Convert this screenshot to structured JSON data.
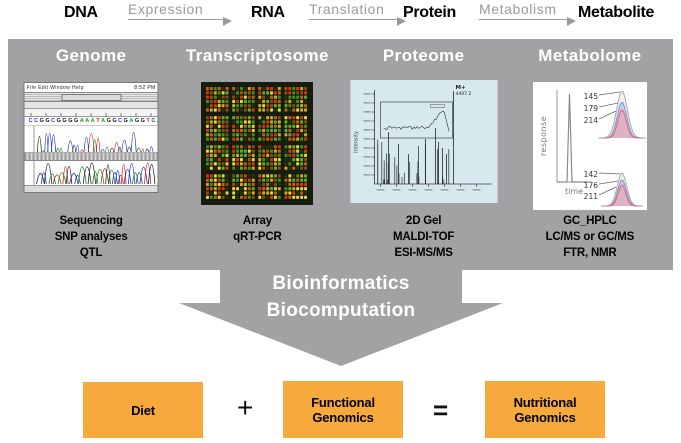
{
  "flow": {
    "dna": "DNA",
    "expression": "Expression",
    "rna": "RNA",
    "translation": "Translation",
    "protein": "Protein",
    "metabolism": "Metabolism",
    "metabolite": "Metabolite"
  },
  "panels": [
    {
      "title": "Genome",
      "methods": [
        "Sequencing",
        "SNP analyses",
        "QTL"
      ]
    },
    {
      "title": "Transcriptosome",
      "methods": [
        "Array",
        "qRT-PCR"
      ]
    },
    {
      "title": "Proteome",
      "methods": [
        "2D Gel",
        "MALDI-TOF",
        "ESI-MS/MS"
      ]
    },
    {
      "title": "Metabolome",
      "methods": [
        "GC_HPLC",
        "LC/MS or GC/MS",
        "FTR, NMR"
      ]
    }
  ],
  "genome_window": {
    "menu": "File  Edit  Window  Help",
    "clock": "8:52 PM"
  },
  "proteome_plot": {
    "peak_label": "M+",
    "peak_value": "4497.2",
    "ylabel": "Intensity"
  },
  "metabolome_plot": {
    "ylabel": "response",
    "xlabel": "time",
    "top_peaks": [
      "145",
      "179",
      "214"
    ],
    "bottom_peaks": [
      "142",
      "176",
      "211"
    ]
  },
  "funnel": {
    "line1": "Bioinformatics",
    "line2": "Biocomputation"
  },
  "equation": {
    "diet": "Diet",
    "plus": "+",
    "functional": "Functional\nGenomics",
    "equals": "=",
    "nutritional": "Nutritional\nGenomics"
  },
  "colors": {
    "band": "#a2a2a4",
    "accent_orange": "#f6a93c",
    "flow_gray": "#9a9a9c"
  }
}
